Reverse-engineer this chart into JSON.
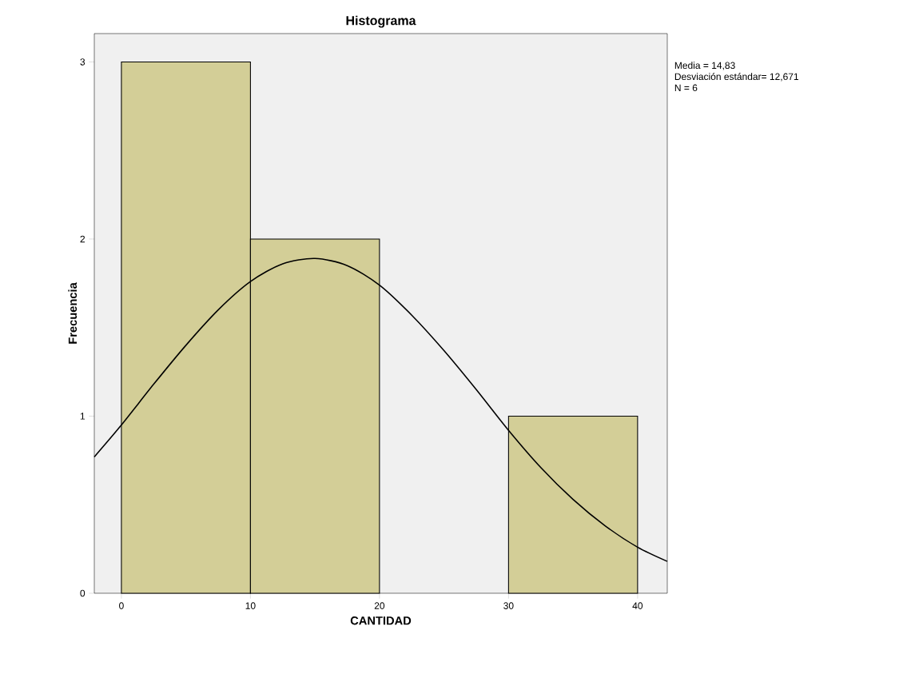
{
  "chart_data": {
    "type": "histogram",
    "title": "Histograma",
    "xlabel": "CANTIDAD",
    "ylabel": "Frecuencia",
    "bins": [
      0,
      10,
      20,
      30,
      40
    ],
    "values": [
      3,
      2,
      0,
      1
    ],
    "color": "#d3ce97",
    "series": [
      {
        "type": "line",
        "color": "#000000",
        "x": [
          -2.1,
          0,
          2.5,
          5,
          7.5,
          10,
          12.5,
          15,
          17.5,
          20,
          22.5,
          25,
          27.5,
          30,
          32.5,
          35,
          37.5,
          40,
          42.3
        ],
        "values": [
          0.77,
          0.95,
          1.18,
          1.4,
          1.6,
          1.76,
          1.86,
          1.89,
          1.85,
          1.74,
          1.57,
          1.37,
          1.15,
          0.92,
          0.71,
          0.53,
          0.38,
          0.26,
          0.18
        ]
      }
    ],
    "xlim": [
      -2.1,
      42.3
    ],
    "ylim": [
      0,
      3.16
    ],
    "xticks": [
      0,
      10,
      20,
      30,
      40
    ],
    "yticks": [
      0,
      1,
      2,
      3
    ],
    "grid": false,
    "annotations": [
      "Media = 14,83",
      "Desviación estándar= 12,671",
      "N = 6"
    ]
  }
}
